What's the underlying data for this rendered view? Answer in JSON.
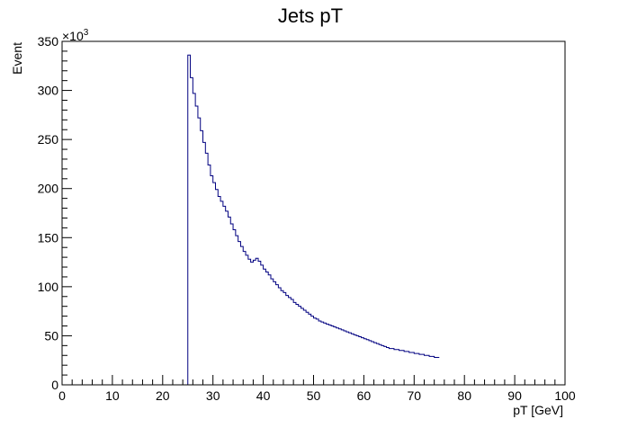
{
  "chart_data": {
    "type": "bar",
    "histogram_style": "step",
    "title": "Jets pT",
    "xlabel": "pT [GeV]",
    "ylabel": "Event",
    "y_multiplier_label": "×10",
    "y_multiplier_exponent": "3",
    "xlim": [
      0,
      100
    ],
    "ylim": [
      0,
      350
    ],
    "x_ticks": [
      "0",
      "10",
      "20",
      "30",
      "40",
      "50",
      "60",
      "70",
      "80",
      "90",
      "100"
    ],
    "y_ticks": [
      "0",
      "50",
      "100",
      "150",
      "200",
      "250",
      "300",
      "350"
    ],
    "bin_width": 0.5,
    "first_bin_x": 25.0,
    "values": [
      336,
      313,
      297,
      284,
      272,
      259,
      247,
      236,
      224,
      213,
      206,
      199,
      192,
      187,
      182,
      177,
      171,
      164,
      158,
      152,
      146,
      141,
      136,
      132,
      128,
      125,
      127,
      129,
      126,
      122,
      118,
      115,
      112,
      108,
      105,
      102,
      99,
      96,
      94,
      91,
      89,
      87,
      84,
      82,
      80,
      78,
      76,
      74,
      72,
      70,
      68,
      67,
      65,
      64,
      63,
      62,
      61,
      60,
      59,
      58,
      57,
      56,
      55,
      54,
      53,
      52,
      51,
      50,
      49,
      48,
      47,
      46,
      45,
      44,
      43,
      42,
      41,
      40,
      39,
      38,
      37,
      37,
      36,
      36,
      35,
      35,
      34,
      34,
      33,
      33,
      32,
      32,
      31,
      31,
      30,
      30,
      29,
      29,
      28,
      28
    ],
    "line_color": "#000080",
    "frame_color": "#000000"
  }
}
